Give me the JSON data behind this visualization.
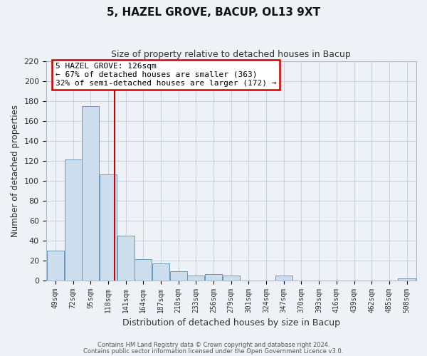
{
  "title": "5, HAZEL GROVE, BACUP, OL13 9XT",
  "subtitle": "Size of property relative to detached houses in Bacup",
  "xlabel": "Distribution of detached houses by size in Bacup",
  "ylabel": "Number of detached properties",
  "bar_values": [
    30,
    121,
    175,
    106,
    45,
    21,
    17,
    9,
    5,
    6,
    5,
    0,
    0,
    5,
    0,
    0,
    0,
    0,
    0,
    0,
    2
  ],
  "bar_labels": [
    "49sqm",
    "72sqm",
    "95sqm",
    "118sqm",
    "141sqm",
    "164sqm",
    "187sqm",
    "210sqm",
    "233sqm",
    "256sqm",
    "279sqm",
    "301sqm",
    "324sqm",
    "347sqm",
    "370sqm",
    "393sqm",
    "416sqm",
    "439sqm",
    "462sqm",
    "485sqm",
    "508sqm"
  ],
  "bar_color": "#ccdded",
  "bar_edge_color": "#6699bb",
  "annotation_line1": "5 HAZEL GROVE: 126sqm",
  "annotation_line2": "← 67% of detached houses are smaller (363)",
  "annotation_line3": "32% of semi-detached houses are larger (172) →",
  "annotation_box_color": "#ffffff",
  "annotation_box_edge_color": "#cc0000",
  "vline_color": "#cc0000",
  "vline_x_label_index": 3,
  "ylim_max": 220,
  "yticks": [
    0,
    20,
    40,
    60,
    80,
    100,
    120,
    140,
    160,
    180,
    200,
    220
  ],
  "grid_color": "#c8d4e0",
  "bg_color": "#eef2f7",
  "footer1": "Contains HM Land Registry data © Crown copyright and database right 2024.",
  "footer2": "Contains public sector information licensed under the Open Government Licence v3.0.",
  "bin_width": 23,
  "property_size": 126
}
